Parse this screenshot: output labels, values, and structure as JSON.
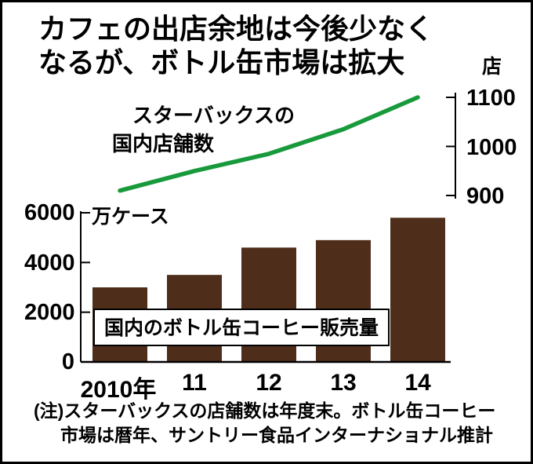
{
  "title": {
    "line1": "カフェの出店余地は今後少なく",
    "line2": "なるが、ボトル缶市場は拡大"
  },
  "line_chart": {
    "label_line1": "スターバックスの",
    "label_line2": "国内店舗数",
    "unit": "店",
    "ticks": [
      "1100",
      "1000",
      "900"
    ]
  },
  "bar_chart": {
    "label": "国内のボトル缶コーヒー販売量",
    "unit": "万ケース",
    "ticks": [
      "6000",
      "4000",
      "2000",
      "0"
    ]
  },
  "x_axis": {
    "labels": [
      "2010年",
      "11",
      "12",
      "13",
      "14"
    ]
  },
  "note": {
    "line1": "(注)スターバックスの店舗数は年度末。ボトル缶コーヒー",
    "line2": "市場は暦年、サントリー食品インターナショナル推計"
  },
  "colors": {
    "bar": "#4e2d1a",
    "line": "#189a3c",
    "axis": "#000000",
    "background": "#ffffff"
  },
  "chart_data": [
    {
      "type": "line",
      "title": "スターバックスの国内店舗数",
      "categories": [
        "2010年",
        "11",
        "12",
        "13",
        "14"
      ],
      "values": [
        910,
        950,
        985,
        1035,
        1100
      ],
      "ylabel": "店",
      "ylim": [
        900,
        1100
      ],
      "yticks": [
        900,
        1000,
        1100
      ],
      "axis_side": "right",
      "grid": false,
      "legend": "none"
    },
    {
      "type": "bar",
      "title": "国内のボトル缶コーヒー販売量",
      "categories": [
        "2010年",
        "11",
        "12",
        "13",
        "14"
      ],
      "values": [
        3000,
        3500,
        4600,
        4900,
        5800
      ],
      "ylabel": "万ケース",
      "ylim": [
        0,
        6000
      ],
      "yticks": [
        0,
        2000,
        4000,
        6000
      ],
      "axis_side": "left",
      "grid": false,
      "legend": "none"
    }
  ]
}
